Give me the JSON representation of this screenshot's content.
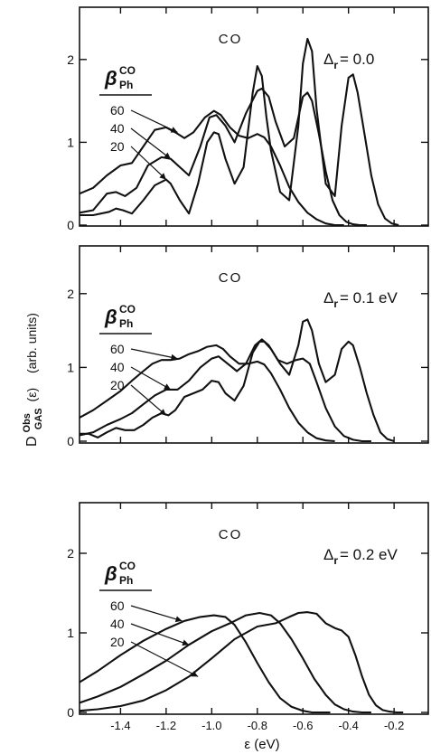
{
  "chart_data": {
    "type": "line",
    "ylabel": "D GAS Obs (ε) (arb. units)",
    "ylabel_parts": {
      "main": "D",
      "superscript": "Obs",
      "subscript": "GAS",
      "arg": "(ε)",
      "units": "(arb. units)"
    },
    "xlabel": "ε (eV)",
    "xlim": [
      -1.58,
      -0.05
    ],
    "x_ticks": [
      -1.4,
      -1.2,
      -1.0,
      -0.8,
      -0.6,
      -0.4,
      -0.2
    ],
    "x_tick_labels": [
      "-1.4",
      "-1.2",
      "-1.0",
      "-0.8",
      "-0.6",
      "-0.4",
      "-0.2"
    ],
    "ylim": [
      0,
      2.5
    ],
    "y_ticks": [
      0,
      1,
      2
    ],
    "y_tick_labels": [
      "0",
      "1",
      "2"
    ],
    "legend_title": {
      "main": "β",
      "superscript": "CO",
      "subscript": "Ph"
    },
    "legend_values": [
      "60",
      "40",
      "20"
    ],
    "panels": [
      {
        "molecule": "CO",
        "delta_label": "Δ",
        "delta_sub": "r",
        "delta_value": "= 0.0",
        "series": [
          {
            "name": "20",
            "x": [
              -1.58,
              -1.52,
              -1.45,
              -1.42,
              -1.39,
              -1.35,
              -1.3,
              -1.25,
              -1.2,
              -1.18,
              -1.14,
              -1.1,
              -1.06,
              -1.02,
              -0.99,
              -0.97,
              -0.94,
              -0.9,
              -0.86,
              -0.82,
              -0.8,
              -0.78,
              -0.76,
              -0.74,
              -0.7,
              -0.66,
              -0.62,
              -0.6,
              -0.58,
              -0.56,
              -0.54,
              -0.5,
              -0.46,
              -0.43,
              -0.4,
              -0.38,
              -0.36,
              -0.33,
              -0.3,
              -0.27,
              -0.24,
              -0.21,
              -0.18
            ],
            "y": [
              0.12,
              0.12,
              0.16,
              0.2,
              0.18,
              0.14,
              0.3,
              0.48,
              0.55,
              0.5,
              0.3,
              0.14,
              0.5,
              1.0,
              1.12,
              1.1,
              0.8,
              0.5,
              0.7,
              1.6,
              1.92,
              1.8,
              1.3,
              0.9,
              0.4,
              0.3,
              1.2,
              1.95,
              2.25,
              2.1,
              1.4,
              0.5,
              0.35,
              1.2,
              1.78,
              1.82,
              1.6,
              1.1,
              0.6,
              0.25,
              0.08,
              0.02,
              0.0
            ]
          },
          {
            "name": "40",
            "x": [
              -1.58,
              -1.52,
              -1.46,
              -1.42,
              -1.38,
              -1.33,
              -1.28,
              -1.22,
              -1.18,
              -1.14,
              -1.1,
              -1.05,
              -1.01,
              -0.98,
              -0.94,
              -0.9,
              -0.85,
              -0.8,
              -0.78,
              -0.75,
              -0.72,
              -0.68,
              -0.64,
              -0.6,
              -0.58,
              -0.56,
              -0.53,
              -0.5,
              -0.47,
              -0.44,
              -0.41,
              -0.38,
              -0.35,
              -0.32
            ],
            "y": [
              0.15,
              0.18,
              0.38,
              0.4,
              0.35,
              0.45,
              0.72,
              0.82,
              0.8,
              0.7,
              0.6,
              0.95,
              1.3,
              1.33,
              1.2,
              1.0,
              1.35,
              1.62,
              1.65,
              1.55,
              1.25,
              0.95,
              1.05,
              1.55,
              1.6,
              1.5,
              1.1,
              0.65,
              0.3,
              0.12,
              0.04,
              0.01,
              0.0,
              0.0
            ]
          },
          {
            "name": "60",
            "x": [
              -1.58,
              -1.52,
              -1.46,
              -1.4,
              -1.35,
              -1.3,
              -1.25,
              -1.2,
              -1.16,
              -1.12,
              -1.08,
              -1.03,
              -0.99,
              -0.96,
              -0.92,
              -0.88,
              -0.84,
              -0.8,
              -0.77,
              -0.74,
              -0.7,
              -0.66,
              -0.62,
              -0.58,
              -0.54,
              -0.5,
              -0.46,
              -0.42
            ],
            "y": [
              0.38,
              0.45,
              0.6,
              0.72,
              0.75,
              0.95,
              1.15,
              1.18,
              1.12,
              1.05,
              1.12,
              1.3,
              1.38,
              1.33,
              1.18,
              1.08,
              1.05,
              1.1,
              1.06,
              0.95,
              0.72,
              0.46,
              0.28,
              0.15,
              0.07,
              0.02,
              0.0,
              0.0
            ]
          }
        ]
      },
      {
        "molecule": "CO",
        "delta_label": "Δ",
        "delta_sub": "r",
        "delta_value": "= 0.1 eV",
        "series": [
          {
            "name": "20",
            "x": [
              -1.58,
              -1.54,
              -1.5,
              -1.46,
              -1.42,
              -1.38,
              -1.34,
              -1.3,
              -1.26,
              -1.22,
              -1.19,
              -1.16,
              -1.12,
              -1.08,
              -1.04,
              -1.0,
              -0.97,
              -0.94,
              -0.9,
              -0.86,
              -0.82,
              -0.79,
              -0.77,
              -0.74,
              -0.7,
              -0.66,
              -0.62,
              -0.6,
              -0.58,
              -0.56,
              -0.53,
              -0.5,
              -0.46,
              -0.43,
              -0.4,
              -0.38,
              -0.35,
              -0.32,
              -0.29,
              -0.26,
              -0.23,
              -0.2
            ],
            "y": [
              0.1,
              0.1,
              0.05,
              0.12,
              0.18,
              0.15,
              0.15,
              0.22,
              0.32,
              0.38,
              0.35,
              0.42,
              0.6,
              0.65,
              0.7,
              0.82,
              0.8,
              0.65,
              0.55,
              0.75,
              1.2,
              1.35,
              1.35,
              1.25,
              1.05,
              0.9,
              1.3,
              1.62,
              1.65,
              1.5,
              1.05,
              0.8,
              0.9,
              1.25,
              1.35,
              1.3,
              1.0,
              0.65,
              0.35,
              0.12,
              0.03,
              0.0
            ]
          },
          {
            "name": "40",
            "x": [
              -1.58,
              -1.52,
              -1.46,
              -1.4,
              -1.35,
              -1.3,
              -1.25,
              -1.2,
              -1.15,
              -1.1,
              -1.05,
              -1.0,
              -0.97,
              -0.93,
              -0.89,
              -0.85,
              -0.81,
              -0.78,
              -0.75,
              -0.71,
              -0.67,
              -0.63,
              -0.6,
              -0.57,
              -0.54,
              -0.5,
              -0.46,
              -0.42,
              -0.38,
              -0.34,
              -0.3
            ],
            "y": [
              0.08,
              0.12,
              0.22,
              0.3,
              0.38,
              0.5,
              0.62,
              0.7,
              0.7,
              0.82,
              1.0,
              1.12,
              1.15,
              1.05,
              0.95,
              1.05,
              1.3,
              1.38,
              1.3,
              1.1,
              1.05,
              1.1,
              1.12,
              1.05,
              0.8,
              0.45,
              0.2,
              0.07,
              0.02,
              0.0,
              0.0
            ]
          },
          {
            "name": "60",
            "x": [
              -1.58,
              -1.52,
              -1.46,
              -1.4,
              -1.35,
              -1.3,
              -1.26,
              -1.22,
              -1.18,
              -1.14,
              -1.1,
              -1.06,
              -1.02,
              -0.98,
              -0.95,
              -0.92,
              -0.88,
              -0.84,
              -0.8,
              -0.77,
              -0.74,
              -0.7,
              -0.66,
              -0.62,
              -0.58,
              -0.54,
              -0.5,
              -0.46
            ],
            "y": [
              0.32,
              0.42,
              0.55,
              0.68,
              0.82,
              0.95,
              1.05,
              1.1,
              1.1,
              1.12,
              1.18,
              1.22,
              1.28,
              1.3,
              1.25,
              1.15,
              1.05,
              1.05,
              1.08,
              1.04,
              0.92,
              0.7,
              0.45,
              0.25,
              0.12,
              0.04,
              0.01,
              0.0
            ]
          }
        ]
      },
      {
        "molecule": "CO",
        "delta_label": "Δ",
        "delta_sub": "r",
        "delta_value": "= 0.2 eV",
        "series": [
          {
            "name": "20",
            "x": [
              -1.58,
              -1.5,
              -1.4,
              -1.3,
              -1.2,
              -1.1,
              -1.0,
              -0.9,
              -0.8,
              -0.72,
              -0.66,
              -0.62,
              -0.58,
              -0.54,
              -0.5,
              -0.46,
              -0.43,
              -0.4,
              -0.37,
              -0.34,
              -0.31,
              -0.28,
              -0.25,
              -0.22,
              -0.19,
              -0.16
            ],
            "y": [
              0.02,
              0.04,
              0.08,
              0.15,
              0.28,
              0.45,
              0.68,
              0.92,
              1.08,
              1.12,
              1.2,
              1.25,
              1.26,
              1.24,
              1.12,
              1.06,
              1.03,
              0.95,
              0.72,
              0.45,
              0.22,
              0.09,
              0.03,
              0.01,
              0.0,
              0.0
            ]
          },
          {
            "name": "40",
            "x": [
              -1.58,
              -1.5,
              -1.4,
              -1.3,
              -1.2,
              -1.1,
              -1.0,
              -0.92,
              -0.85,
              -0.79,
              -0.74,
              -0.7,
              -0.65,
              -0.6,
              -0.55,
              -0.5,
              -0.46,
              -0.42,
              -0.38,
              -0.34,
              -0.3
            ],
            "y": [
              0.12,
              0.2,
              0.32,
              0.48,
              0.65,
              0.85,
              1.02,
              1.12,
              1.22,
              1.25,
              1.22,
              1.12,
              0.92,
              0.68,
              0.42,
              0.22,
              0.1,
              0.04,
              0.01,
              0.0,
              0.0
            ]
          },
          {
            "name": "60",
            "x": [
              -1.58,
              -1.5,
              -1.4,
              -1.3,
              -1.2,
              -1.12,
              -1.05,
              -0.99,
              -0.94,
              -0.9,
              -0.85,
              -0.8,
              -0.75,
              -0.7,
              -0.65,
              -0.6,
              -0.56,
              -0.52,
              -0.48
            ],
            "y": [
              0.38,
              0.52,
              0.72,
              0.9,
              1.05,
              1.15,
              1.2,
              1.22,
              1.2,
              1.1,
              0.88,
              0.62,
              0.38,
              0.18,
              0.07,
              0.02,
              0.0,
              0.0,
              0.0
            ]
          }
        ]
      }
    ]
  }
}
